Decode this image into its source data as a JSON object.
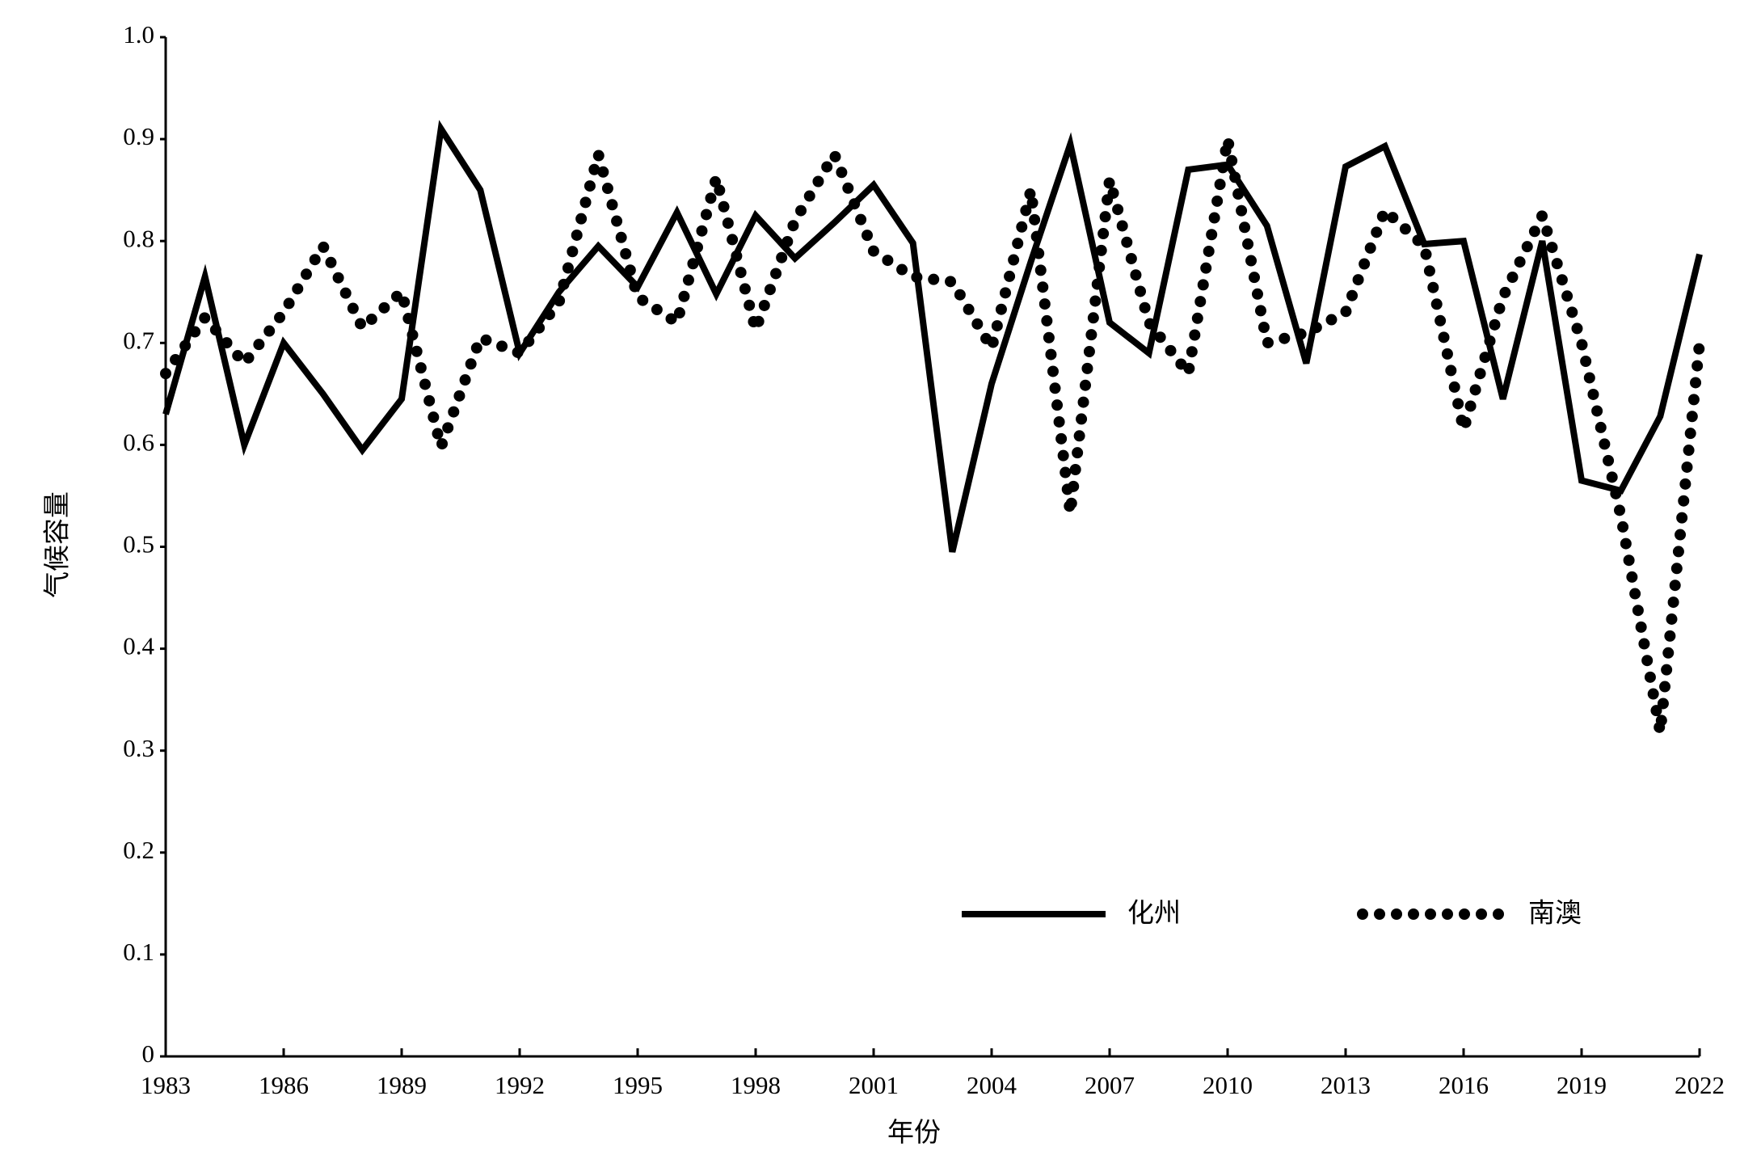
{
  "chart_data": {
    "type": "line",
    "x_label": "年份",
    "y_label": "气候容量",
    "x": [
      1983,
      1984,
      1985,
      1986,
      1987,
      1988,
      1989,
      1990,
      1991,
      1992,
      1993,
      1994,
      1995,
      1996,
      1997,
      1998,
      1999,
      2000,
      2001,
      2002,
      2003,
      2004,
      2005,
      2006,
      2007,
      2008,
      2009,
      2010,
      2011,
      2012,
      2013,
      2014,
      2015,
      2016,
      2017,
      2018,
      2019,
      2020,
      2021,
      2022
    ],
    "series": [
      {
        "name": "化州",
        "color": "#000000",
        "style": "solid",
        "values": [
          0.63,
          0.765,
          0.6,
          0.7,
          0.65,
          0.595,
          0.645,
          0.91,
          0.85,
          0.69,
          0.75,
          0.795,
          0.755,
          0.828,
          0.748,
          0.825,
          0.783,
          0.818,
          0.855,
          0.798,
          0.495,
          0.66,
          0.78,
          0.895,
          0.72,
          0.69,
          0.87,
          0.875,
          0.815,
          0.68,
          0.873,
          0.893,
          0.797,
          0.8,
          0.645,
          0.8,
          0.565,
          0.555,
          0.628,
          0.787
        ]
      },
      {
        "name": "南澳",
        "color": "#000000",
        "style": "dotted",
        "values": [
          0.67,
          0.725,
          0.68,
          0.73,
          0.795,
          0.715,
          0.75,
          0.598,
          0.705,
          0.69,
          0.74,
          0.885,
          0.745,
          0.72,
          0.862,
          0.713,
          0.82,
          0.885,
          0.79,
          0.765,
          0.76,
          0.695,
          0.85,
          0.533,
          0.86,
          0.72,
          0.67,
          0.9,
          0.7,
          0.71,
          0.73,
          0.83,
          0.795,
          0.615,
          0.745,
          0.825,
          0.7,
          0.53,
          0.318,
          0.7
        ]
      }
    ],
    "xlim": [
      1983,
      2022
    ],
    "xticks": [
      1983,
      1986,
      1989,
      1992,
      1995,
      1998,
      2001,
      2004,
      2007,
      2010,
      2013,
      2016,
      2019,
      2022
    ],
    "ylim": [
      0,
      1
    ],
    "yticks": [
      0,
      0.1,
      0.2,
      0.3,
      0.4,
      0.5,
      0.6,
      0.7,
      0.8,
      0.9,
      {
        "value": 1,
        "label": "1.0"
      }
    ],
    "grid": false,
    "legend": "lower right"
  }
}
